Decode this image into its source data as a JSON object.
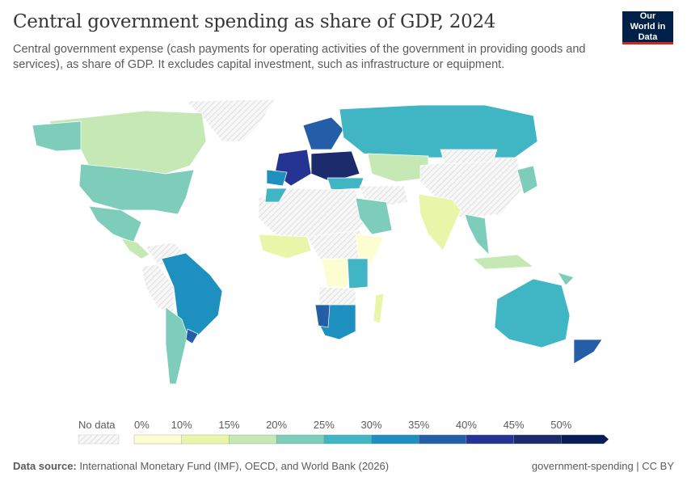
{
  "title": "Central government spending as share of GDP, 2024",
  "subtitle": "Central government expense (cash payments for operating activities of the government in providing goods and services), as share of GDP. It excludes capital investment, such as infrastructure or equipment.",
  "logo": "Our World in Data",
  "legend": {
    "no_data_label": "No data",
    "ticks": [
      "0%",
      "10%",
      "15%",
      "20%",
      "25%",
      "30%",
      "35%",
      "40%",
      "45%",
      "50%"
    ],
    "colors": [
      "#fdfdd2",
      "#e9f6a9",
      "#c6e8b4",
      "#7ecdbb",
      "#40b5c4",
      "#1d90c0",
      "#235ea7",
      "#253493",
      "#1b2b6b",
      "#081d58"
    ]
  },
  "footer": {
    "source_label": "Data source:",
    "source": "International Monetary Fund (IMF), OECD, and World Bank (2026)",
    "license": "government-spending | CC BY"
  }
}
